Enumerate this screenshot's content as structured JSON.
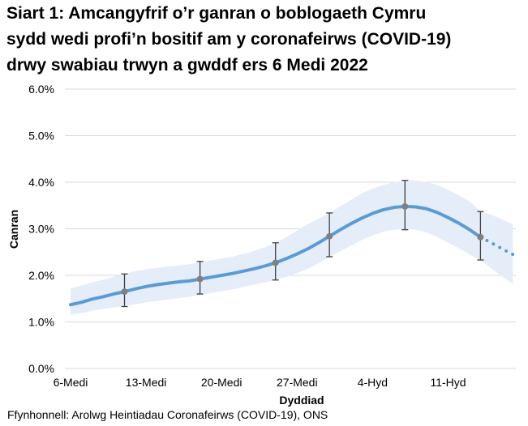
{
  "chart_data": {
    "type": "line",
    "title_lines": [
      "Siart 1: Amcangyfrif o’r ganran o boblogaeth Cymru",
      "sydd wedi profi’n bositif am y coronafeirws (COVID-19)",
      "drwy swabiau trwyn a gwddf ers 6 Medi 2022"
    ],
    "xlabel": "Dyddiad",
    "ylabel": "Canran",
    "source": "Ffynhonnell: Arolwg Heintiadau Coronafeirws (COVID-19), ONS",
    "ylim": [
      0,
      6
    ],
    "y_ticks": [
      "0.0%",
      "1.0%",
      "2.0%",
      "3.0%",
      "4.0%",
      "5.0%",
      "6.0%"
    ],
    "x_ticks": [
      {
        "date": "2022-09-06",
        "label": "6-Medi"
      },
      {
        "date": "2022-09-13",
        "label": "13-Medi"
      },
      {
        "date": "2022-09-20",
        "label": "20-Medi"
      },
      {
        "date": "2022-09-27",
        "label": "27-Medi"
      },
      {
        "date": "2022-10-04",
        "label": "4-Hyd"
      },
      {
        "date": "2022-10-11",
        "label": "11-Hyd"
      }
    ],
    "grid": true,
    "colors": {
      "line": "#5b9bd5",
      "band": "#e4edf8",
      "marker": "#808080",
      "errorbar": "#404040",
      "grid": "#d9d9d9"
    },
    "dates": [
      "2022-09-06",
      "2022-09-07",
      "2022-09-08",
      "2022-09-09",
      "2022-09-10",
      "2022-09-11",
      "2022-09-12",
      "2022-09-13",
      "2022-09-14",
      "2022-09-15",
      "2022-09-16",
      "2022-09-17",
      "2022-09-18",
      "2022-09-19",
      "2022-09-20",
      "2022-09-21",
      "2022-09-22",
      "2022-09-23",
      "2022-09-24",
      "2022-09-25",
      "2022-09-26",
      "2022-09-27",
      "2022-09-28",
      "2022-09-29",
      "2022-09-30",
      "2022-10-01",
      "2022-10-02",
      "2022-10-03",
      "2022-10-04",
      "2022-10-05",
      "2022-10-06",
      "2022-10-07",
      "2022-10-08",
      "2022-10-09",
      "2022-10-10",
      "2022-10-11",
      "2022-10-12",
      "2022-10-13",
      "2022-10-14",
      "2022-10-15",
      "2022-10-16",
      "2022-10-17"
    ],
    "estimate": [
      1.37,
      1.42,
      1.49,
      1.54,
      1.6,
      1.65,
      1.71,
      1.76,
      1.8,
      1.83,
      1.86,
      1.88,
      1.92,
      1.96,
      2.0,
      2.04,
      2.09,
      2.14,
      2.2,
      2.27,
      2.36,
      2.46,
      2.57,
      2.7,
      2.84,
      2.98,
      3.11,
      3.23,
      3.33,
      3.41,
      3.46,
      3.48,
      3.47,
      3.43,
      3.35,
      3.24,
      3.12,
      2.98,
      2.82,
      2.7,
      2.57,
      2.45
    ],
    "estimate_dotted_from": "2022-10-14",
    "band_upper": [
      1.72,
      1.78,
      1.85,
      1.9,
      1.97,
      2.03,
      2.09,
      2.13,
      2.16,
      2.19,
      2.21,
      2.24,
      2.28,
      2.32,
      2.36,
      2.4,
      2.46,
      2.52,
      2.6,
      2.7,
      2.82,
      2.96,
      3.1,
      3.22,
      3.34,
      3.48,
      3.62,
      3.76,
      3.86,
      3.94,
      4.0,
      4.04,
      4.04,
      4.0,
      3.94,
      3.84,
      3.72,
      3.58,
      3.38,
      3.3,
      3.2,
      3.1
    ],
    "band_lower": [
      1.15,
      1.19,
      1.24,
      1.28,
      1.31,
      1.34,
      1.38,
      1.42,
      1.45,
      1.48,
      1.51,
      1.54,
      1.58,
      1.62,
      1.66,
      1.7,
      1.75,
      1.8,
      1.85,
      1.9,
      1.97,
      2.05,
      2.14,
      2.26,
      2.4,
      2.52,
      2.64,
      2.76,
      2.86,
      2.94,
      2.98,
      3.0,
      2.98,
      2.92,
      2.82,
      2.7,
      2.58,
      2.45,
      2.33,
      2.15,
      1.98,
      1.82
    ],
    "points": [
      {
        "date": "2022-09-11",
        "value": 1.65,
        "low": 1.33,
        "high": 2.03
      },
      {
        "date": "2022-09-18",
        "value": 1.92,
        "low": 1.6,
        "high": 2.3
      },
      {
        "date": "2022-09-25",
        "value": 2.27,
        "low": 1.9,
        "high": 2.7
      },
      {
        "date": "2022-09-30",
        "value": 2.84,
        "low": 2.4,
        "high": 3.34
      },
      {
        "date": "2022-10-07",
        "value": 3.48,
        "low": 2.98,
        "high": 4.04
      },
      {
        "date": "2022-10-14",
        "value": 2.82,
        "low": 2.33,
        "high": 3.37
      }
    ]
  }
}
